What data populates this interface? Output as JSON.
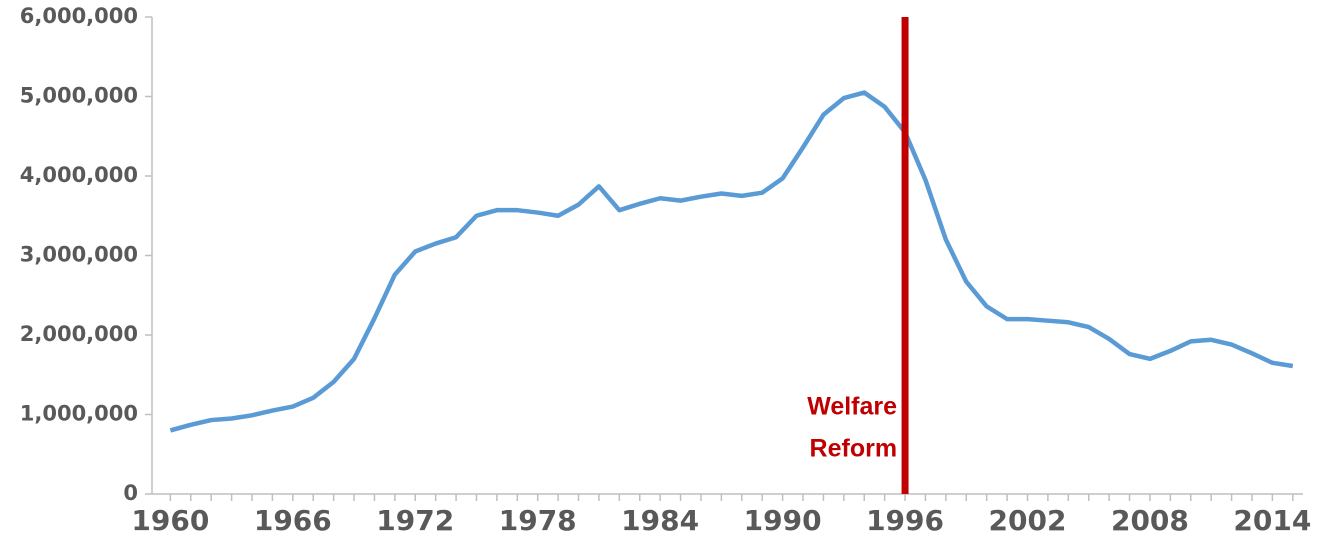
{
  "chart_data": {
    "type": "line",
    "x": [
      1960,
      1961,
      1962,
      1963,
      1964,
      1965,
      1966,
      1967,
      1968,
      1969,
      1970,
      1971,
      1972,
      1973,
      1974,
      1975,
      1976,
      1977,
      1978,
      1979,
      1980,
      1981,
      1982,
      1983,
      1984,
      1985,
      1986,
      1987,
      1988,
      1989,
      1990,
      1991,
      1992,
      1993,
      1994,
      1995,
      1996,
      1997,
      1998,
      1999,
      2000,
      2001,
      2002,
      2003,
      2004,
      2005,
      2006,
      2007,
      2008,
      2009,
      2010,
      2011,
      2012,
      2013,
      2014,
      2015
    ],
    "series": [
      {
        "color": "#5b9bd5",
        "values": [
          800000,
          870000,
          930000,
          950000,
          990000,
          1050000,
          1100000,
          1210000,
          1410000,
          1700000,
          2210000,
          2760000,
          3050000,
          3150000,
          3230000,
          3500000,
          3570000,
          3570000,
          3540000,
          3500000,
          3640000,
          3870000,
          3570000,
          3650000,
          3720000,
          3690000,
          3740000,
          3780000,
          3750000,
          3790000,
          3970000,
          4360000,
          4770000,
          4980000,
          5050000,
          4870000,
          4550000,
          3950000,
          3200000,
          2670000,
          2360000,
          2200000,
          2200000,
          2180000,
          2160000,
          2100000,
          1950000,
          1760000,
          1700000,
          1800000,
          1920000,
          1940000,
          1880000,
          1770000,
          1650000,
          1610000
        ]
      }
    ],
    "xlim": [
      1959.1,
      2015.5
    ],
    "xticks": [
      1960,
      1966,
      1972,
      1978,
      1984,
      1990,
      1996,
      2002,
      2008,
      2014
    ],
    "ylim": [
      0,
      6000000
    ],
    "yticks": [
      0,
      {
        "value": 1000000,
        "label": "1,000,000"
      },
      {
        "value": 2000000,
        "label": "2,000,000"
      },
      {
        "value": 3000000,
        "label": "3,000,000"
      },
      {
        "value": 4000000,
        "label": "4,000,000"
      },
      {
        "value": 5000000,
        "label": "5,000,000"
      },
      {
        "value": 6000000,
        "label": "6,000,000"
      }
    ],
    "annotation": {
      "x": 1996,
      "lines": [
        "Welfare",
        "Reform"
      ],
      "color": "#c00000"
    }
  }
}
